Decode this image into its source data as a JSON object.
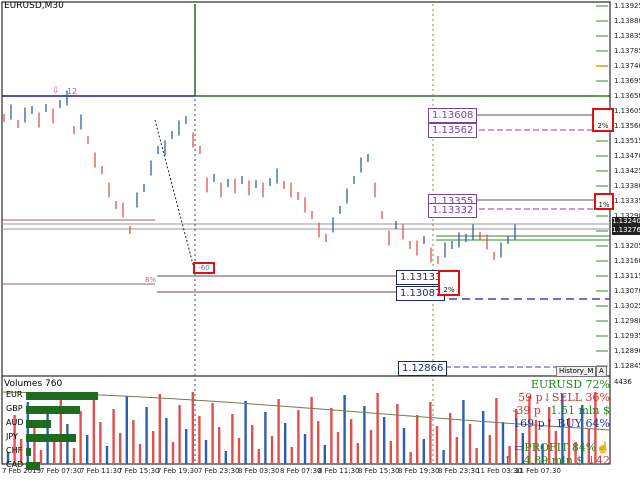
{
  "chart": {
    "symbol": "EURUSD,M30",
    "indicator_title": "Volumes 760",
    "colors": {
      "bull": "#2d5fb0",
      "bear": "#e05050",
      "grid": "#c8c8c8",
      "trend_green": "#2b6e2b",
      "resistance": "#1a1aa0",
      "pink": "#c06080",
      "purple": "#8040a0"
    },
    "y_axis": [
      "1.13925",
      "1.13880",
      "1.13835",
      "1.13785",
      "1.13740",
      "1.13695",
      "1.13650",
      "1.13605",
      "1.13560",
      "1.13515",
      "1.13470",
      "1.13425",
      "1.13380",
      "1.13335",
      "1.13290",
      "1.13245",
      "1.13205",
      "1.13160",
      "1.13115",
      "1.13070",
      "1.13025",
      "1.12980",
      "1.12935",
      "1.12890",
      "1.12845"
    ],
    "y_highlight": [
      "1.13240",
      "1.13276"
    ],
    "volume_axis": "4436",
    "x_axis": [
      "7 Feb 2019",
      "7 Feb 07:30",
      "7 Feb 11:30",
      "7 Feb 15:30",
      "7 Feb 19:30",
      "7 Feb 23:30",
      "8 Feb 03:30",
      "8 Feb 07:30",
      "8 Feb 11:30",
      "8 Feb 15:30",
      "8 Feb 19:30",
      "8 Feb 23:30",
      "11 Feb 03:30",
      "11 Feb 07:30"
    ],
    "price_boxes": {
      "b1": "1.13608",
      "b2": "1.13562",
      "b3": "1.13355",
      "b4": "1.13332",
      "b5": "1.13133",
      "b6": "1.13087",
      "b7": "1.12866"
    },
    "red_boxes": {
      "r1": "2%",
      "r2": "1%",
      "r3": "2%"
    },
    "annotations": {
      "arrow_label": "12",
      "minus_label": "-60",
      "pct_label": "8%"
    },
    "tab_history": "History_M",
    "tab_a": "A"
  },
  "currencies": [
    {
      "name": "EUR",
      "fill": 0.8
    },
    {
      "name": "GBP",
      "fill": 0.6
    },
    {
      "name": "AUD",
      "fill": 0.28
    },
    {
      "name": "JPY",
      "fill": 0.55
    },
    {
      "name": "CHF",
      "fill": 0.05
    },
    {
      "name": "CAD",
      "fill": 0.15
    }
  ],
  "panel": {
    "line1": "EURUSD 72%",
    "line2": "59 p↓SELL 36%",
    "line3a": "-39 p",
    "line3b": "1.51 mln $",
    "line4": "169 p↑ BUY 64%",
    "line5": "PROFIT 84%",
    "line6a": "↑",
    "line6b": "4.89 mln $",
    "line6c": "↓42",
    "colors": {
      "green": "#1a8a1a",
      "red": "#d03030",
      "blue": "#1a3aa0"
    }
  }
}
